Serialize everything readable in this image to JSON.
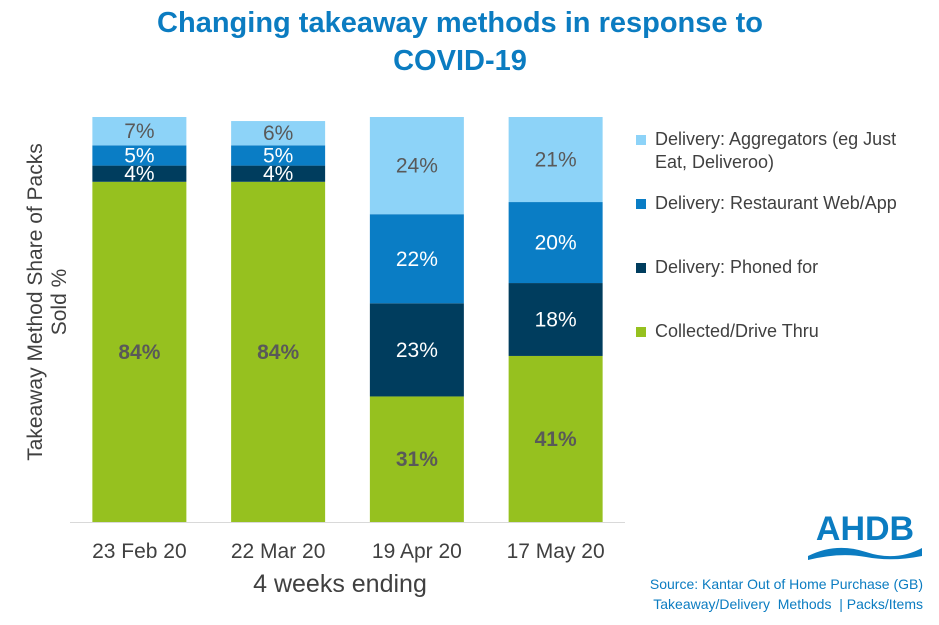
{
  "chart_data": {
    "type": "bar",
    "stacked": true,
    "title": "Changing takeaway methods in response to COVID-19",
    "xlabel": "4 weeks ending",
    "ylabel": "Takeaway Method Share of Packs Sold %",
    "ylim": [
      0,
      100
    ],
    "categories": [
      "23 Feb 20",
      "22 Mar 20",
      "19 Apr 20",
      "17 May 20"
    ],
    "series": [
      {
        "name": "Collected/Drive Thru",
        "color": "#96C11F",
        "label_color": "#595959",
        "bold": true,
        "values": [
          84,
          84,
          31,
          41
        ]
      },
      {
        "name": "Delivery: Phoned for",
        "color": "#003D5E",
        "label_color": "#FFFFFF",
        "bold": false,
        "values": [
          4,
          4,
          23,
          18
        ]
      },
      {
        "name": "Delivery: Restaurant Web/App",
        "color": "#0A7DC5",
        "label_color": "#FFFFFF",
        "bold": false,
        "values": [
          5,
          5,
          22,
          20
        ]
      },
      {
        "name": "Delivery: Aggregators (eg Just Eat, Deliveroo)",
        "color": "#8DD3F8",
        "label_color": "#595959",
        "bold": false,
        "values": [
          7,
          6,
          24,
          21
        ]
      }
    ],
    "legend_position": "right"
  },
  "title_lines": [
    "Changing takeaway methods in response to",
    "COVID-19"
  ],
  "logo_text": "AHDB",
  "source_lines": [
    "Source: Kantar Out of Home Purchase (GB)",
    "Takeaway/Delivery  Methods  | Packs/Items"
  ]
}
